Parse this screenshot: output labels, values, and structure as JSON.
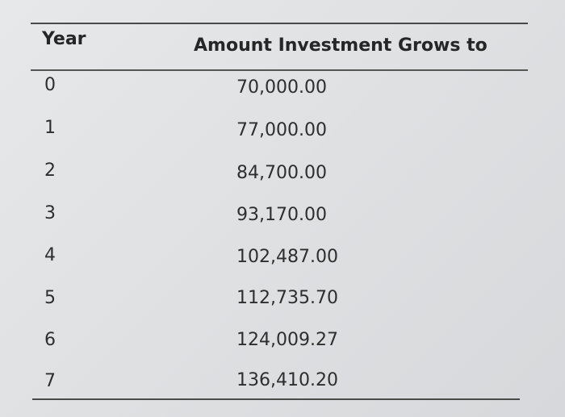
{
  "table": {
    "headers": {
      "year": "Year",
      "amount": "Amount Investment Grows to"
    },
    "rows": [
      {
        "year": "0",
        "amount": "70,000.00"
      },
      {
        "year": "1",
        "amount": "77,000.00"
      },
      {
        "year": "2",
        "amount": "84,700.00"
      },
      {
        "year": "3",
        "amount": "93,170.00"
      },
      {
        "year": "4",
        "amount": "102,487.00"
      },
      {
        "year": "5",
        "amount": "112,735.70"
      },
      {
        "year": "6",
        "amount": "124,009.27"
      },
      {
        "year": "7",
        "amount": "136,410.20"
      }
    ]
  }
}
